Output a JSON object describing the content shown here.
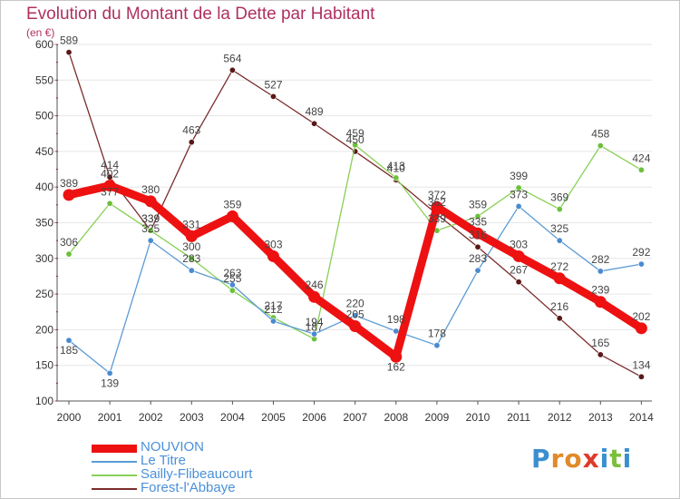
{
  "header": {
    "title": "Evolution du Montant de la Dette par Habitant",
    "unit": "(en €)"
  },
  "logo": {
    "text": "Proxiti",
    "letters": [
      "P",
      "r",
      "o",
      "x",
      "i",
      "t",
      "i"
    ],
    "colors": [
      "#3a8fd0",
      "#e08a2a",
      "#e08a2a",
      "#e03a2a",
      "#3a8fd0",
      "#7bbf3a",
      "#3a8fd0"
    ]
  },
  "chart_data": {
    "type": "line",
    "title": "Evolution du Montant de la Dette par Habitant",
    "ylabel": "(en €)",
    "xlabel": "",
    "x": [
      "2000",
      "2001",
      "2002",
      "2003",
      "2004",
      "2005",
      "2006",
      "2007",
      "2008",
      "2009",
      "2010",
      "2011",
      "2012",
      "2013",
      "2014"
    ],
    "ylim": [
      100,
      600
    ],
    "yticks": [
      "100",
      "150",
      "200",
      "250",
      "300",
      "350",
      "400",
      "450",
      "500",
      "550",
      "600"
    ],
    "grid": true,
    "legend_position": "bottom-left",
    "series": [
      {
        "name": "NOUVION",
        "color": "#ee1111",
        "values": [
          389,
          402,
          380,
          331,
          359,
          303,
          246,
          205,
          162,
          372,
          335,
          303,
          272,
          239,
          202
        ]
      },
      {
        "name": "Le Titre",
        "color": "#5b9bd5",
        "values": [
          185,
          139,
          325,
          283,
          263,
          212,
          194,
          220,
          198,
          178,
          283,
          373,
          325,
          282,
          292
        ]
      },
      {
        "name": "Sailly-Flibeaucourt",
        "color": "#88d055",
        "values": [
          306,
          377,
          339,
          300,
          255,
          217,
          187,
          459,
          413,
          339,
          359,
          399,
          369,
          458,
          424
        ]
      },
      {
        "name": "Forest-l'Abbaye",
        "color": "#7b2c2c",
        "values": [
          589,
          414,
          339,
          463,
          564,
          527,
          489,
          450,
          410,
          362,
          316,
          267,
          216,
          165,
          134
        ]
      }
    ],
    "data_labels": [
      [
        "389",
        "402",
        "380",
        "331",
        "359",
        "303",
        "246",
        "205",
        "162",
        "372",
        "335",
        "303",
        "272",
        "239",
        "202"
      ],
      [
        "185",
        "139",
        "325",
        "283",
        "263",
        "212",
        "194",
        "220",
        "198",
        "178",
        "283",
        "373",
        "325",
        "282",
        "292"
      ],
      [
        "306",
        "377",
        "339",
        "300",
        "255",
        "217",
        "187",
        "459",
        "413",
        "339",
        "359",
        "399",
        "369",
        "458",
        "424"
      ],
      [
        "589",
        "414",
        "339",
        "463",
        "564",
        "527",
        "489",
        "450",
        "410",
        "362",
        "316",
        "267",
        "216",
        "165",
        "134"
      ]
    ]
  }
}
